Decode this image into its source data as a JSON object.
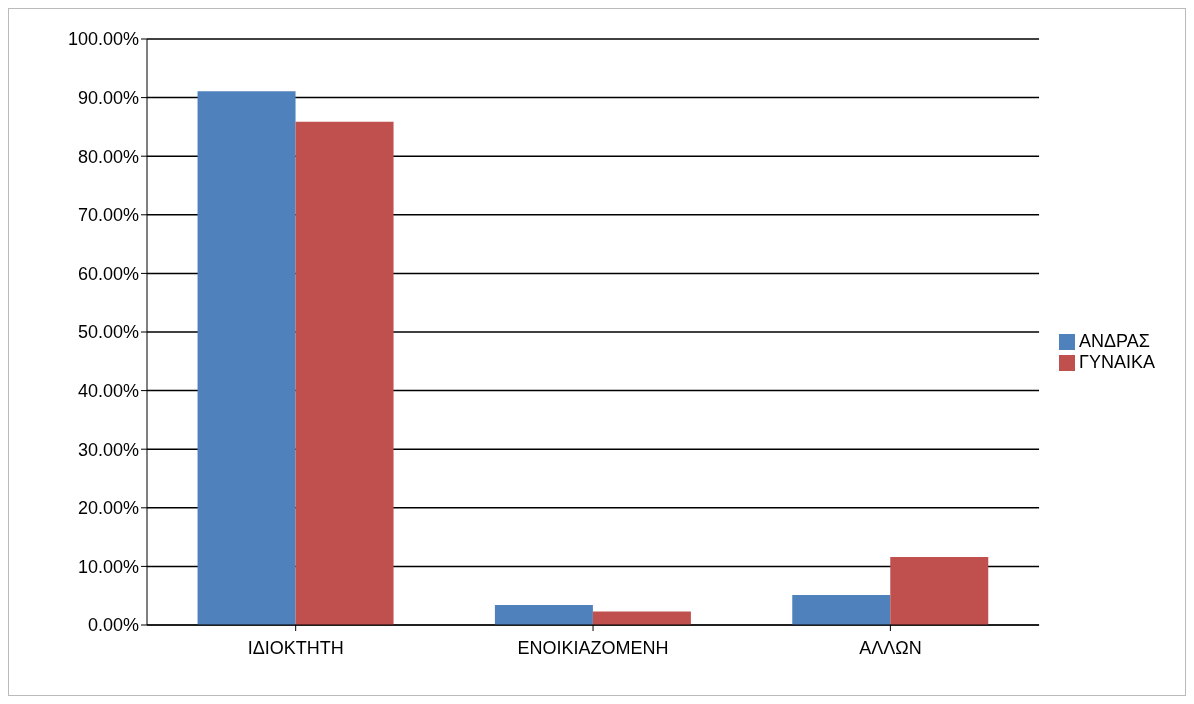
{
  "chart_data": {
    "type": "bar",
    "categories": [
      "ΙΔΙΟΚΤΗΤΗ",
      "ΕΝΟΙΚΙΑΖΟΜΕΝΗ",
      "ΑΛΛΩΝ"
    ],
    "series": [
      {
        "name": "ΑΝΔΡΑΣ",
        "color": "#4f81bd",
        "values": [
          91.1,
          3.4,
          5.1
        ]
      },
      {
        "name": "ΓΥΝΑΙΚΑ",
        "color": "#c0504d",
        "values": [
          85.9,
          2.3,
          11.6
        ]
      }
    ],
    "ylim": [
      0,
      100
    ],
    "yticks": [
      {
        "value": 0,
        "label": "0.00%"
      },
      {
        "value": 10,
        "label": "10.00%"
      },
      {
        "value": 20,
        "label": "20.00%"
      },
      {
        "value": 30,
        "label": "30.00%"
      },
      {
        "value": 40,
        "label": "40.00%"
      },
      {
        "value": 50,
        "label": "50.00%"
      },
      {
        "value": 60,
        "label": "60.00%"
      },
      {
        "value": 70,
        "label": "70.00%"
      },
      {
        "value": 80,
        "label": "80.00%"
      },
      {
        "value": 90,
        "label": "90.00%"
      },
      {
        "value": 100,
        "label": "100.00%"
      }
    ],
    "grid": "y",
    "legend": "right"
  }
}
